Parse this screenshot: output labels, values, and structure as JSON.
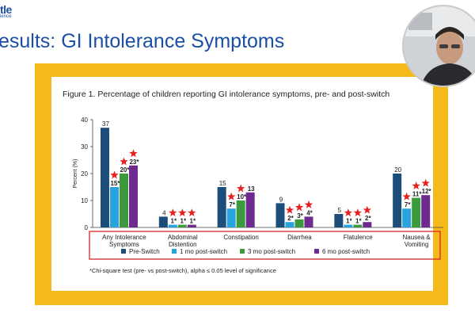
{
  "header": {
    "logo_text": "tle",
    "logo_sub": "ience",
    "slide_title": "esults: GI Intolerance Symptoms"
  },
  "figure": {
    "title": "Figure 1.  Percentage of children reporting GI intolerance symptoms, pre- and post-switch",
    "footnote": "*Chi-square test (pre- vs post-switch), alpha ≤ 0.05 level of significance"
  },
  "colors": {
    "frame": "#f5b91a",
    "slide_title": "#1a4fa3",
    "highlight_box": "#d9262c",
    "star": "#e8211f"
  },
  "chart_data": {
    "type": "bar",
    "ylabel": "Percent (%)",
    "ylim": [
      0,
      40
    ],
    "yticks": [
      0,
      10,
      20,
      30,
      40
    ],
    "grid": false,
    "legend_position": "bottom",
    "categories": [
      "Any Intolerance\nSymptoms",
      "Abdominal\nDistention",
      "Constipation",
      "Diarrhea",
      "Flatulence",
      "Nausea &\nVomiting"
    ],
    "series": [
      {
        "name": "Pre-Switch",
        "color": "#1d4e79",
        "values": [
          37,
          4,
          15,
          9,
          5,
          20
        ],
        "labels": [
          "37",
          "4",
          "15",
          "9",
          "5",
          "20"
        ],
        "starred": [
          false,
          false,
          false,
          false,
          false,
          false
        ]
      },
      {
        "name": "1 mo post-switch",
        "color": "#29a3dd",
        "values": [
          15,
          1,
          7,
          2,
          1,
          7
        ],
        "labels": [
          "15*",
          "1*",
          "7*",
          "2*",
          "1*",
          "7*"
        ],
        "starred": [
          true,
          true,
          true,
          true,
          true,
          true
        ]
      },
      {
        "name": "3 mo post-switch",
        "color": "#3a9a3c",
        "values": [
          20,
          1,
          10,
          3,
          1,
          11
        ],
        "labels": [
          "20*",
          "1*",
          "10*",
          "3*",
          "1*",
          "11*"
        ],
        "starred": [
          true,
          true,
          true,
          true,
          true,
          true
        ]
      },
      {
        "name": "6 mo post-switch",
        "color": "#6f2a8f",
        "values": [
          23,
          1,
          13,
          4,
          2,
          12
        ],
        "labels": [
          "23*",
          "1*",
          "13",
          "4*",
          "2*",
          "12*"
        ],
        "starred": [
          true,
          true,
          false,
          true,
          true,
          true
        ]
      }
    ]
  }
}
